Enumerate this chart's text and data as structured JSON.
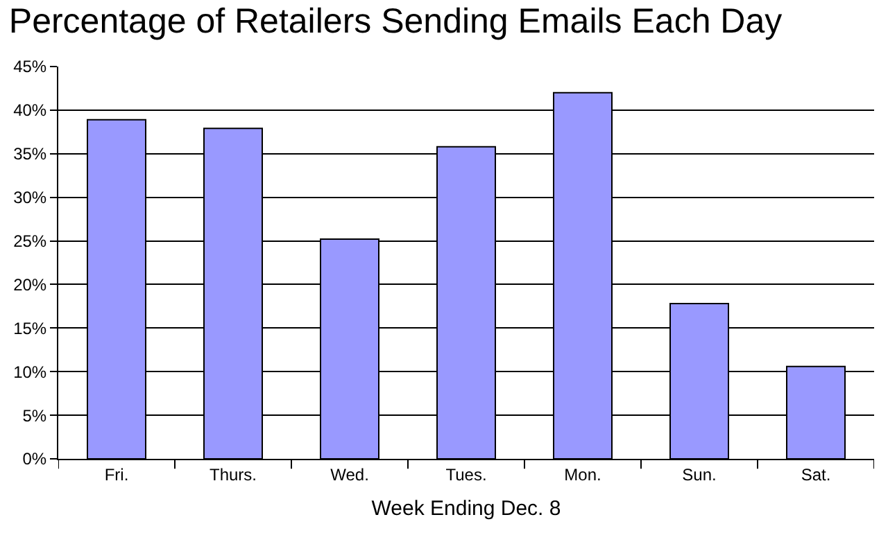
{
  "chart_data": {
    "type": "bar",
    "title": "Percentage of Retailers Sending Emails Each Day",
    "xlabel": "Week Ending Dec. 8",
    "categories": [
      "Fri.",
      "Thurs.",
      "Wed.",
      "Tues.",
      "Mon.",
      "Sun.",
      "Sat."
    ],
    "values": [
      38.9,
      37.9,
      25.2,
      35.8,
      42.0,
      17.8,
      10.6
    ],
    "color": "#9999ff",
    "ylim": [
      0,
      45
    ],
    "yticks": [
      {
        "value": 0,
        "label": "0%"
      },
      {
        "value": 5,
        "label": "5%"
      },
      {
        "value": 10,
        "label": "10%"
      },
      {
        "value": 15,
        "label": "15%"
      },
      {
        "value": 20,
        "label": "20%"
      },
      {
        "value": 25,
        "label": "25%"
      },
      {
        "value": 30,
        "label": "30%"
      },
      {
        "value": 35,
        "label": "35%"
      },
      {
        "value": 40,
        "label": "40%"
      },
      {
        "value": 45,
        "label": "45%"
      }
    ],
    "grid": "y"
  }
}
